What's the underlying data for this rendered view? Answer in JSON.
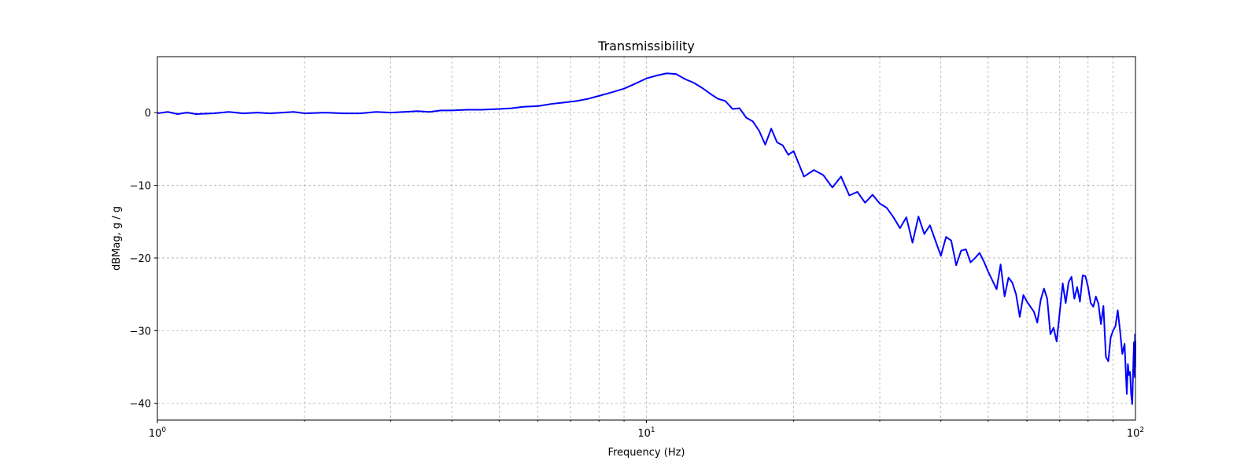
{
  "chart_data": {
    "type": "line",
    "title": "Transmissibility",
    "xlabel": "Frequency (Hz)",
    "ylabel": "dBMag, g / g",
    "xscale": "log",
    "xlim": [
      1,
      100
    ],
    "ylim": [
      -42.3,
      7.7
    ],
    "grid": true,
    "x_ticks": [
      {
        "value": 1,
        "base": "10",
        "exp": "0"
      },
      {
        "value": 10,
        "base": "10",
        "exp": "1"
      },
      {
        "value": 100,
        "base": "10",
        "exp": "2"
      }
    ],
    "y_ticks": [
      {
        "value": 0,
        "label": "0"
      },
      {
        "value": -10,
        "label": "−10"
      },
      {
        "value": -20,
        "label": "−20"
      },
      {
        "value": -30,
        "label": "−30"
      },
      {
        "value": -40,
        "label": "−40"
      }
    ],
    "series": [
      {
        "color": "#0000ff",
        "points": [
          [
            1.0,
            -0.1
          ],
          [
            1.05,
            0.1
          ],
          [
            1.1,
            -0.2
          ],
          [
            1.15,
            0.0
          ],
          [
            1.2,
            -0.2
          ],
          [
            1.3,
            -0.1
          ],
          [
            1.4,
            0.1
          ],
          [
            1.5,
            -0.1
          ],
          [
            1.6,
            0.0
          ],
          [
            1.7,
            -0.1
          ],
          [
            1.8,
            0.0
          ],
          [
            1.9,
            0.1
          ],
          [
            2.0,
            -0.1
          ],
          [
            2.2,
            0.0
          ],
          [
            2.4,
            -0.1
          ],
          [
            2.6,
            -0.1
          ],
          [
            2.8,
            0.1
          ],
          [
            3.0,
            0.0
          ],
          [
            3.2,
            0.1
          ],
          [
            3.4,
            0.2
          ],
          [
            3.6,
            0.1
          ],
          [
            3.8,
            0.3
          ],
          [
            4.0,
            0.3
          ],
          [
            4.3,
            0.4
          ],
          [
            4.6,
            0.4
          ],
          [
            5.0,
            0.5
          ],
          [
            5.3,
            0.6
          ],
          [
            5.6,
            0.8
          ],
          [
            6.0,
            0.9
          ],
          [
            6.4,
            1.2
          ],
          [
            6.8,
            1.4
          ],
          [
            7.2,
            1.6
          ],
          [
            7.6,
            1.9
          ],
          [
            8.0,
            2.3
          ],
          [
            8.5,
            2.8
          ],
          [
            9.0,
            3.3
          ],
          [
            9.5,
            4.0
          ],
          [
            10.0,
            4.7
          ],
          [
            10.5,
            5.1
          ],
          [
            11.0,
            5.4
          ],
          [
            11.5,
            5.3
          ],
          [
            12.0,
            4.6
          ],
          [
            12.5,
            4.1
          ],
          [
            13.0,
            3.4
          ],
          [
            13.5,
            2.6
          ],
          [
            14.0,
            1.9
          ],
          [
            14.5,
            1.6
          ],
          [
            15.0,
            0.5
          ],
          [
            15.5,
            0.6
          ],
          [
            16.0,
            -0.7
          ],
          [
            16.5,
            -1.2
          ],
          [
            17.0,
            -2.5
          ],
          [
            17.5,
            -4.4
          ],
          [
            18.0,
            -2.2
          ],
          [
            18.5,
            -4.1
          ],
          [
            19.0,
            -4.5
          ],
          [
            19.5,
            -5.8
          ],
          [
            20.0,
            -5.3
          ],
          [
            21.0,
            -8.8
          ],
          [
            22.0,
            -7.9
          ],
          [
            23.0,
            -8.6
          ],
          [
            24.0,
            -10.3
          ],
          [
            25.0,
            -8.8
          ],
          [
            26.0,
            -11.4
          ],
          [
            27.0,
            -10.9
          ],
          [
            28.0,
            -12.4
          ],
          [
            29.0,
            -11.3
          ],
          [
            30.0,
            -12.5
          ],
          [
            31.0,
            -13.1
          ],
          [
            32.0,
            -14.4
          ],
          [
            33.0,
            -15.9
          ],
          [
            34.0,
            -14.4
          ],
          [
            35.0,
            -17.9
          ],
          [
            36.0,
            -14.3
          ],
          [
            37.0,
            -16.7
          ],
          [
            38.0,
            -15.5
          ],
          [
            40.0,
            -19.7
          ],
          [
            41.0,
            -17.1
          ],
          [
            42.0,
            -17.6
          ],
          [
            43.0,
            -21.0
          ],
          [
            44.0,
            -19.0
          ],
          [
            45.0,
            -18.8
          ],
          [
            46.0,
            -20.6
          ],
          [
            47.0,
            -20.0
          ],
          [
            48.0,
            -19.3
          ],
          [
            49.0,
            -20.5
          ],
          [
            50.0,
            -21.9
          ],
          [
            52.0,
            -24.3
          ],
          [
            53.0,
            -20.9
          ],
          [
            54.0,
            -25.3
          ],
          [
            55.0,
            -22.7
          ],
          [
            56.0,
            -23.4
          ],
          [
            57.0,
            -25.0
          ],
          [
            58.0,
            -28.1
          ],
          [
            59.0,
            -25.1
          ],
          [
            60.0,
            -26.0
          ],
          [
            62.0,
            -27.4
          ],
          [
            63.0,
            -28.9
          ],
          [
            64.0,
            -25.8
          ],
          [
            65.0,
            -24.2
          ],
          [
            66.0,
            -25.6
          ],
          [
            67.0,
            -30.5
          ],
          [
            68.0,
            -29.6
          ],
          [
            69.0,
            -31.5
          ],
          [
            70.0,
            -27.5
          ],
          [
            71.0,
            -23.5
          ],
          [
            72.0,
            -26.2
          ],
          [
            73.0,
            -23.3
          ],
          [
            74.0,
            -22.6
          ],
          [
            75.0,
            -25.6
          ],
          [
            76.0,
            -24.0
          ],
          [
            77.0,
            -26.0
          ],
          [
            78.0,
            -22.4
          ],
          [
            79.0,
            -22.5
          ],
          [
            80.0,
            -24.0
          ],
          [
            81.0,
            -26.2
          ],
          [
            82.0,
            -26.7
          ],
          [
            83.0,
            -25.3
          ],
          [
            84.0,
            -26.3
          ],
          [
            85.0,
            -29.1
          ],
          [
            86.0,
            -26.6
          ],
          [
            87.0,
            -33.6
          ],
          [
            88.0,
            -34.2
          ],
          [
            89.0,
            -30.9
          ],
          [
            90.0,
            -30.0
          ],
          [
            91.0,
            -29.4
          ],
          [
            92.0,
            -27.2
          ],
          [
            93.0,
            -30.0
          ],
          [
            94.0,
            -33.2
          ],
          [
            95.0,
            -31.8
          ],
          [
            96.0,
            -38.7
          ],
          [
            96.5,
            -34.6
          ],
          [
            97.0,
            -36.1
          ],
          [
            97.5,
            -35.7
          ],
          [
            98.0,
            -38.8
          ],
          [
            98.5,
            -40.1
          ],
          [
            99.0,
            -34.5
          ],
          [
            99.3,
            -31.6
          ],
          [
            99.5,
            -34.8
          ],
          [
            99.7,
            -36.4
          ],
          [
            99.8,
            -30.5
          ],
          [
            99.9,
            -35.0
          ],
          [
            100.0,
            -31.4
          ]
        ]
      }
    ]
  }
}
